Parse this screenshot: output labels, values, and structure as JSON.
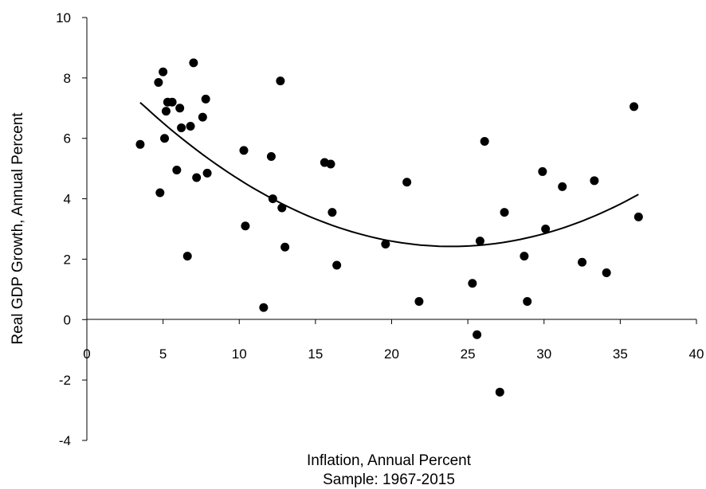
{
  "chart_data": {
    "type": "scatter",
    "xlabel": "Inflation, Annual Percent",
    "subtitle": "Sample: 1967-2015",
    "ylabel": "Real GDP Growth, Annual Percent",
    "xlim": [
      0,
      40
    ],
    "ylim": [
      -4,
      10
    ],
    "x_ticks": [
      0,
      5,
      10,
      15,
      20,
      25,
      30,
      35,
      40
    ],
    "y_ticks": [
      -4,
      -2,
      0,
      2,
      4,
      6,
      8,
      10
    ],
    "grid": false,
    "legend": "none",
    "series": [
      {
        "points": [
          [
            3.5,
            5.8
          ],
          [
            4.7,
            7.85
          ],
          [
            4.8,
            4.2
          ],
          [
            5.0,
            8.2
          ],
          [
            5.1,
            6.0
          ],
          [
            5.2,
            6.9
          ],
          [
            5.3,
            7.2
          ],
          [
            5.6,
            7.2
          ],
          [
            5.9,
            4.95
          ],
          [
            6.1,
            7.0
          ],
          [
            6.2,
            6.35
          ],
          [
            6.6,
            2.1
          ],
          [
            6.8,
            6.4
          ],
          [
            7.0,
            8.5
          ],
          [
            7.2,
            4.7
          ],
          [
            7.6,
            6.7
          ],
          [
            7.8,
            7.3
          ],
          [
            7.9,
            4.85
          ],
          [
            10.3,
            5.6
          ],
          [
            10.4,
            3.1
          ],
          [
            11.6,
            0.4
          ],
          [
            12.1,
            5.4
          ],
          [
            12.2,
            4.0
          ],
          [
            12.7,
            7.9
          ],
          [
            12.8,
            3.7
          ],
          [
            13.0,
            2.4
          ],
          [
            15.6,
            5.2
          ],
          [
            16.0,
            5.15
          ],
          [
            16.1,
            3.55
          ],
          [
            16.4,
            1.8
          ],
          [
            19.6,
            2.5
          ],
          [
            21.0,
            4.55
          ],
          [
            21.8,
            0.6
          ],
          [
            25.3,
            1.2
          ],
          [
            25.6,
            -0.5
          ],
          [
            25.8,
            2.6
          ],
          [
            26.1,
            5.9
          ],
          [
            27.1,
            -2.4
          ],
          [
            27.4,
            3.55
          ],
          [
            28.7,
            2.1
          ],
          [
            28.9,
            0.6
          ],
          [
            29.9,
            4.9
          ],
          [
            30.1,
            3.0
          ],
          [
            31.2,
            4.4
          ],
          [
            32.5,
            1.9
          ],
          [
            33.3,
            4.6
          ],
          [
            34.1,
            1.55
          ],
          [
            35.9,
            7.05
          ],
          [
            36.2,
            3.4
          ]
        ]
      }
    ],
    "trendline": {
      "type": "quadratic",
      "x_range": [
        3.5,
        36.2
      ],
      "coefficients": [
        8.961,
        -0.5468,
        0.01143
      ]
    }
  }
}
